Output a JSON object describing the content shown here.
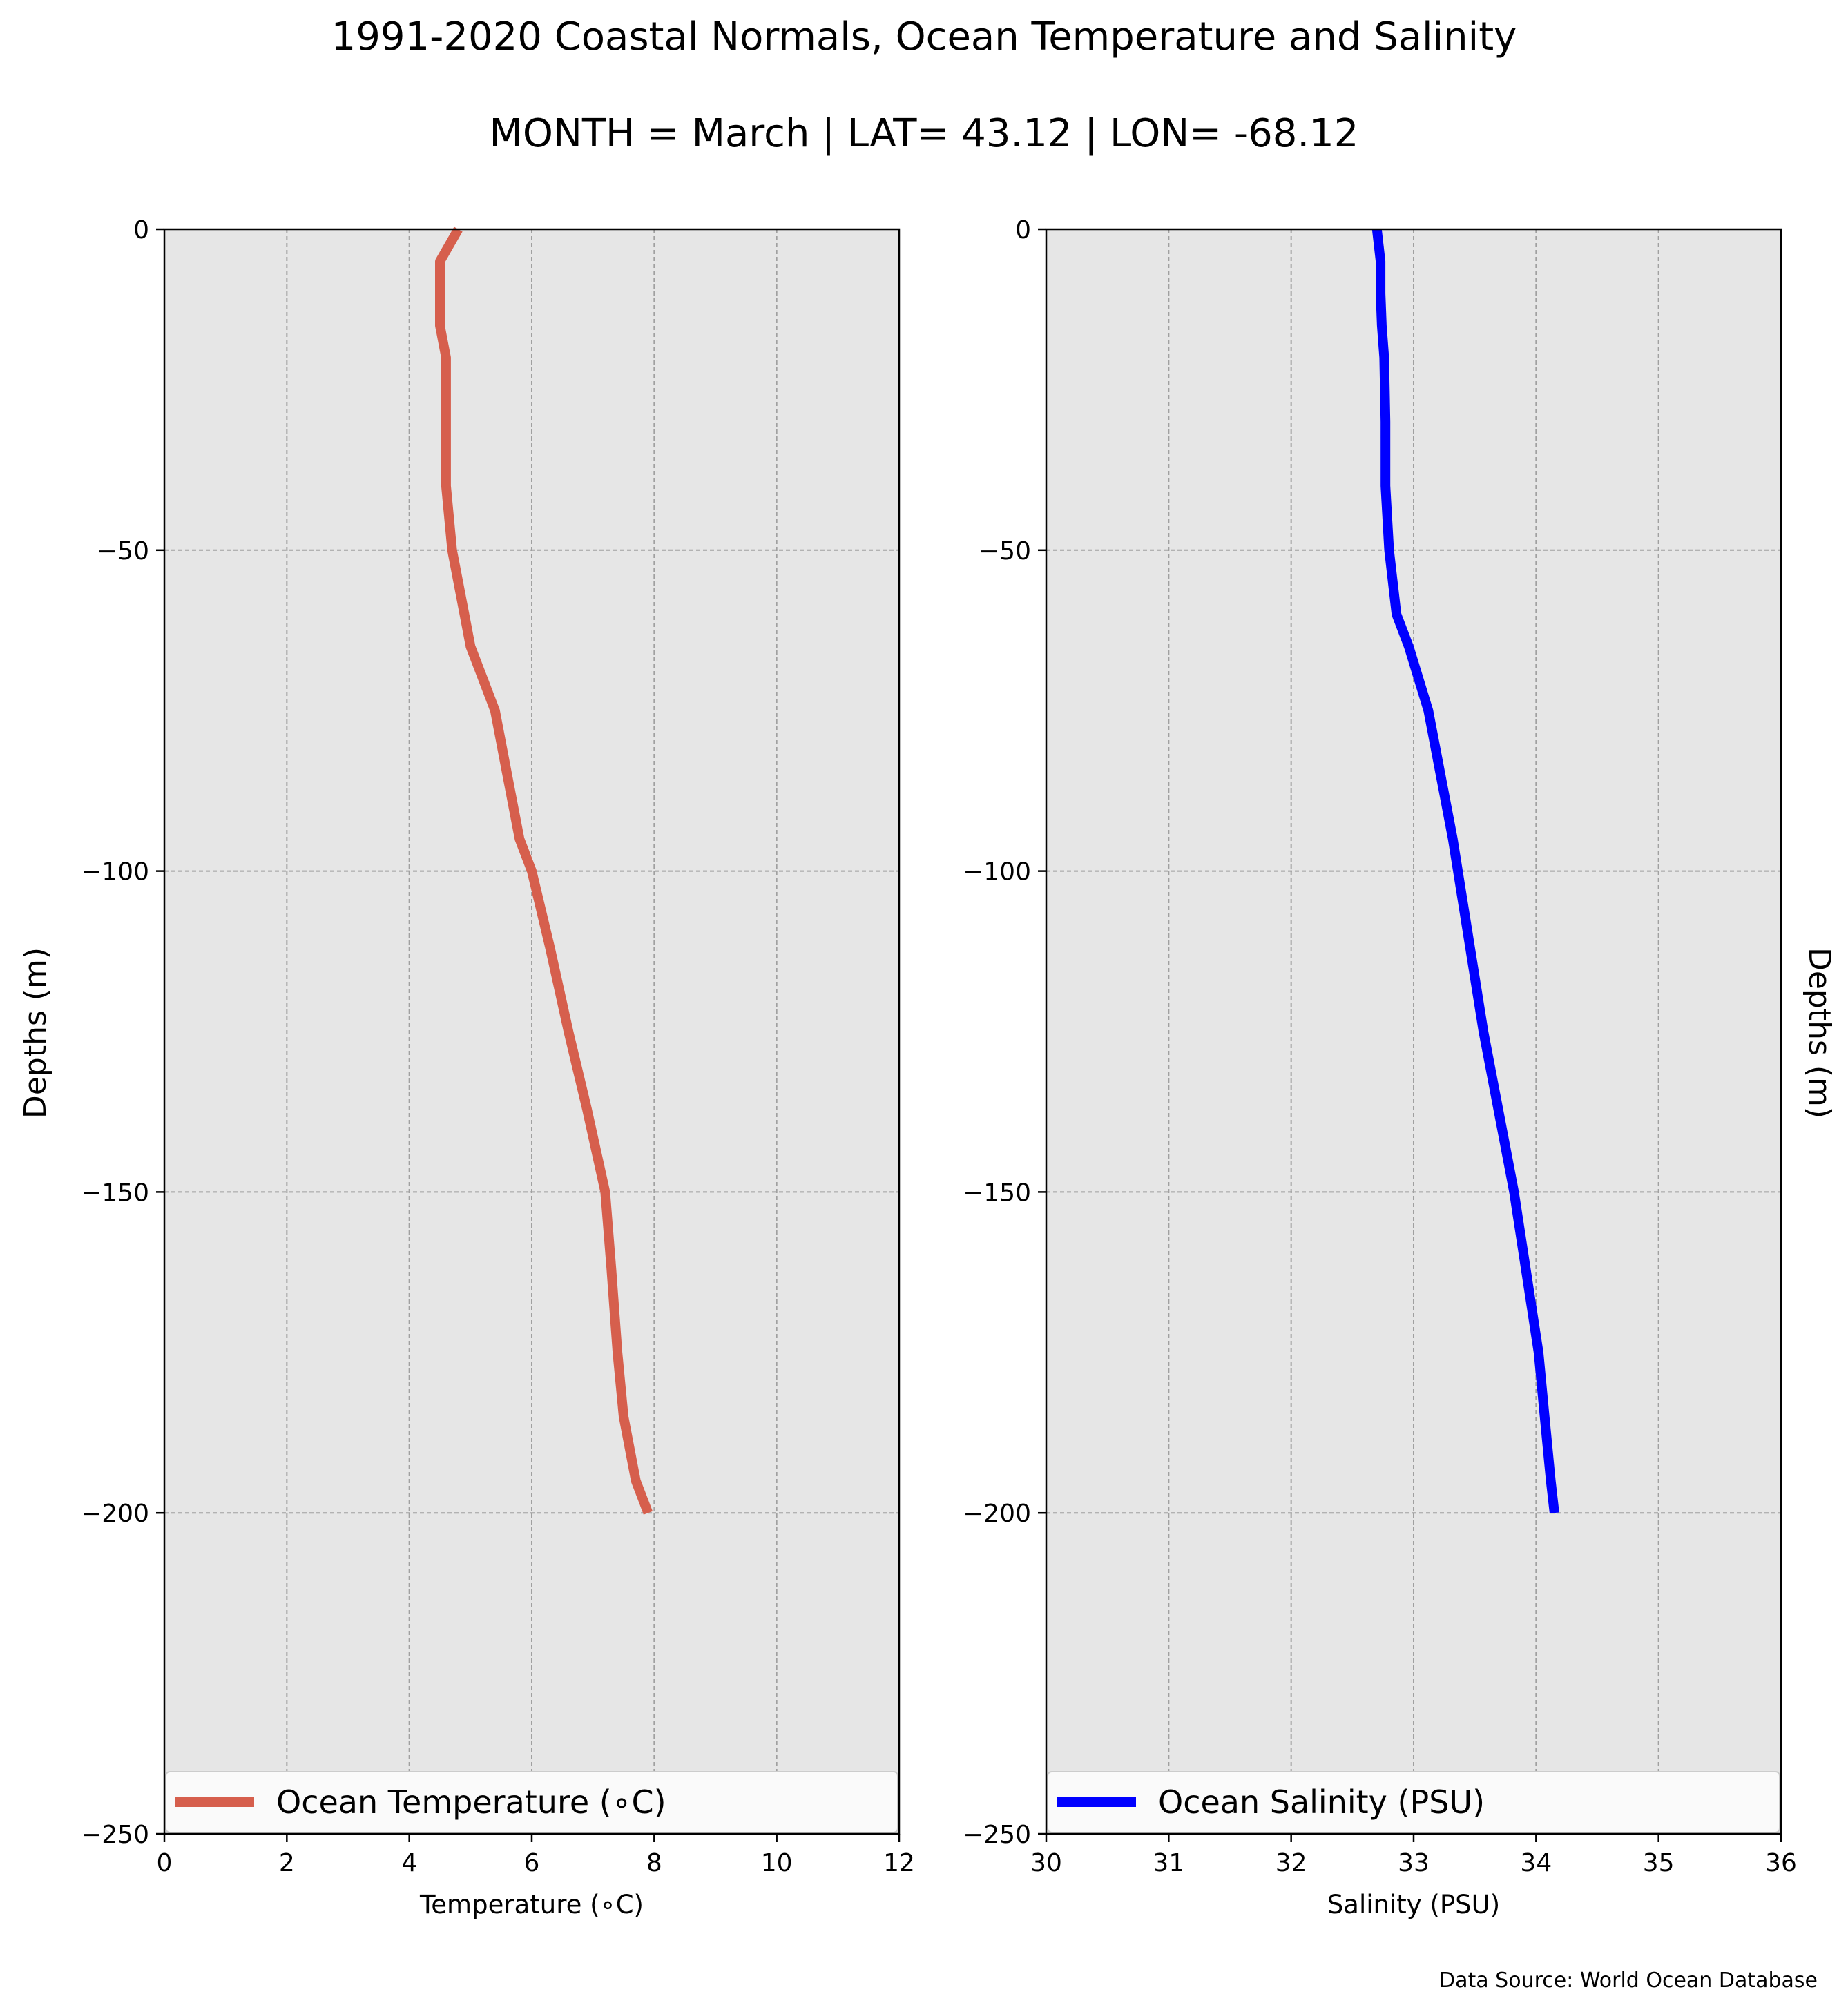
{
  "figure": {
    "title": "1991-2020 Coastal Normals, Ocean Temperature and Salinity",
    "subtitle": "MONTH = March | LAT= 43.12 | LON= -68.12",
    "source": "Data Source: World Ocean Database"
  },
  "chart_data": [
    {
      "type": "line",
      "orientation": "vertical-profile",
      "xlabel": "Temperature (∘C)",
      "ylabel": "Depths (m)",
      "xlim": [
        0,
        12
      ],
      "ylim": [
        -250,
        0
      ],
      "xticks": [
        "0",
        "2",
        "4",
        "6",
        "8",
        "10",
        "12"
      ],
      "yticks": [
        "0",
        "−50",
        "−100",
        "−150",
        "−200",
        "−250"
      ],
      "grid": true,
      "legend": "lower-center",
      "colors": {
        "line": "#d65f4d",
        "background": "#e6e6e6"
      },
      "series": [
        {
          "name": "Ocean Temperature (∘C)",
          "x": [
            4.8,
            4.5,
            4.5,
            4.5,
            4.6,
            4.6,
            4.6,
            4.7,
            4.9,
            5.0,
            5.2,
            5.4,
            5.6,
            5.8,
            6.0,
            6.3,
            6.6,
            6.9,
            7.2,
            7.3,
            7.4,
            7.5,
            7.7,
            7.9
          ],
          "y": [
            0,
            -5,
            -10,
            -15,
            -20,
            -30,
            -40,
            -50,
            -60,
            -65,
            -70,
            -75,
            -85,
            -95,
            -100,
            -112,
            -125,
            -137,
            -150,
            -162,
            -175,
            -185,
            -195,
            -200
          ]
        }
      ]
    },
    {
      "type": "line",
      "orientation": "vertical-profile",
      "xlabel": "Salinity (PSU)",
      "ylabel": "Depths (m)",
      "xlim": [
        30,
        36
      ],
      "ylim": [
        -250,
        0
      ],
      "xticks": [
        "30",
        "31",
        "32",
        "33",
        "34",
        "35",
        "36"
      ],
      "yticks": [
        "0",
        "−50",
        "−100",
        "−150",
        "−200",
        "−250"
      ],
      "grid": true,
      "legend": "lower-center",
      "colors": {
        "line": "#0000ff",
        "background": "#e6e6e6"
      },
      "series": [
        {
          "name": "Ocean Salinity (PSU)",
          "x": [
            32.7,
            32.73,
            32.73,
            32.74,
            32.76,
            32.77,
            32.77,
            32.8,
            32.86,
            32.96,
            33.12,
            33.32,
            33.57,
            33.82,
            34.02,
            34.07,
            34.12,
            34.15
          ],
          "y": [
            0,
            -5,
            -10,
            -15,
            -20,
            -30,
            -40,
            -50,
            -60,
            -65,
            -75,
            -95,
            -125,
            -150,
            -175,
            -185,
            -195,
            -200
          ]
        }
      ]
    }
  ]
}
